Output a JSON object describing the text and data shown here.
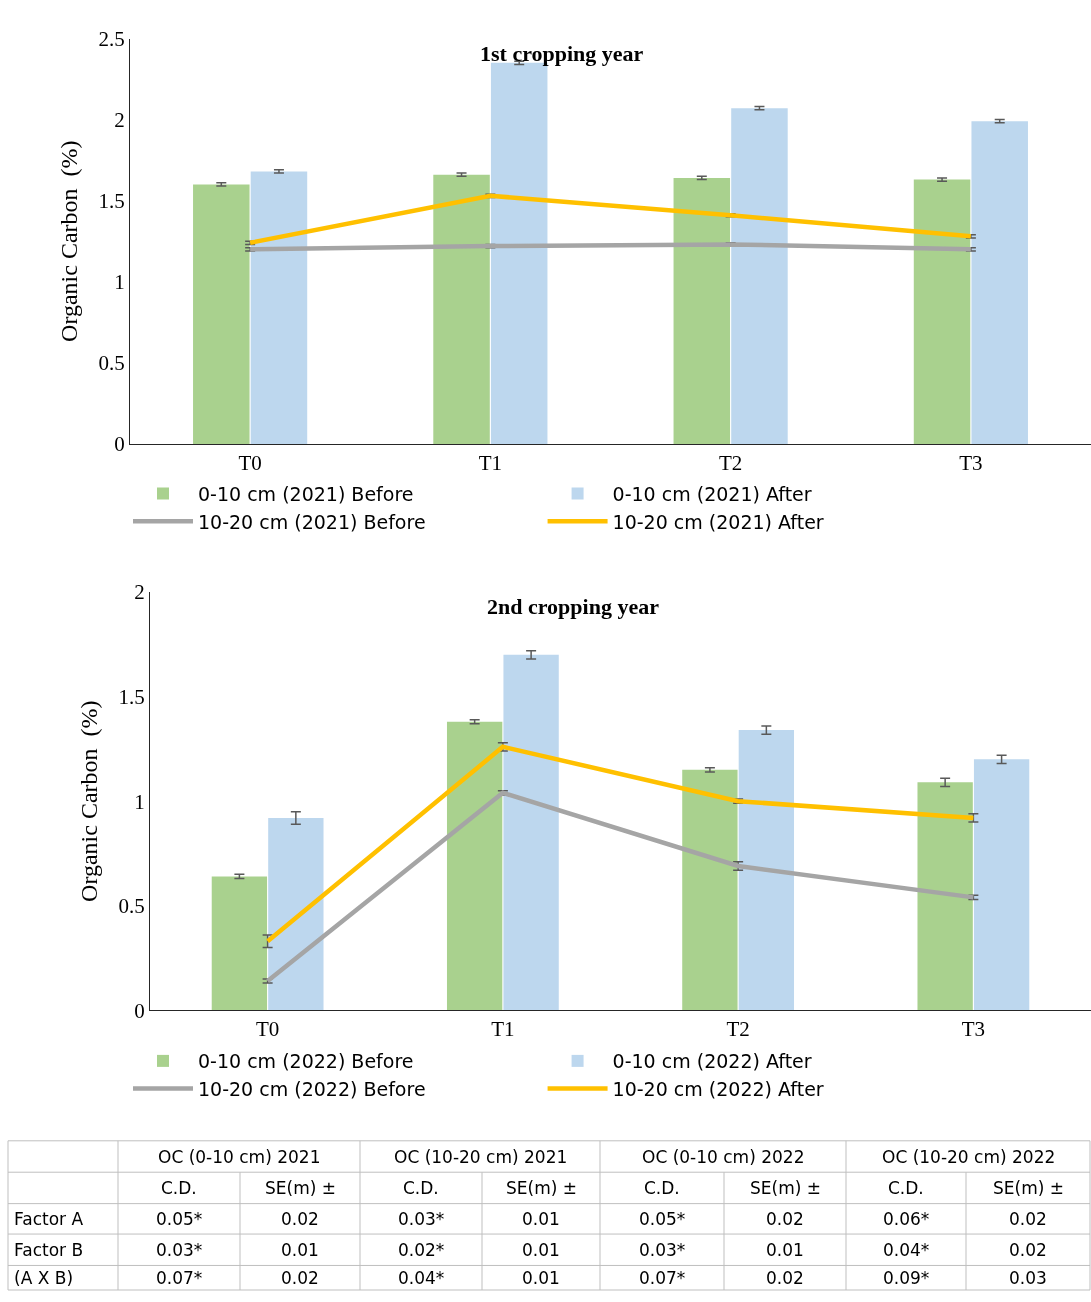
{
  "chart_data": [
    {
      "type": "bar",
      "title": "1st cropping year",
      "ylabel": "Organic Carbon  (%)",
      "categories": [
        "T0",
        "T1",
        "T2",
        "T3"
      ],
      "ylim": [
        0,
        2.5
      ],
      "yticks": [
        0,
        0.5,
        1,
        1.5,
        2,
        2.5
      ],
      "legend": "bottom",
      "series": [
        {
          "name": "0-10 cm (2021) Before",
          "color": "#a9d18e",
          "values": [
            1.6,
            1.66,
            1.64,
            1.63
          ],
          "errors": [
            0.01,
            0.01,
            0.01,
            0.01
          ]
        },
        {
          "name": "0-10 cm (2021) After",
          "color": "#bdd7ee",
          "values": [
            1.68,
            2.35,
            2.07,
            1.99
          ],
          "errors": [
            0.01,
            0.01,
            0.01,
            0.01
          ]
        },
        {
          "name": "10-20 cm (2021) Before",
          "type": "line",
          "marker": "none",
          "color": "#a5a5a5",
          "values": [
            1.2,
            1.22,
            1.23,
            1.2
          ],
          "errors": [
            0.01,
            0.01,
            0.01,
            0.01
          ]
        },
        {
          "name": "10-20 cm (2021) After",
          "type": "line",
          "marker": "none",
          "color": "#ffc000",
          "values": [
            1.24,
            1.53,
            1.41,
            1.28
          ],
          "errors": [
            0.01,
            0.01,
            0.01,
            0.01
          ]
        }
      ]
    },
    {
      "type": "bar",
      "title": "2nd cropping year",
      "ylabel": "Organic Carbon  (%)",
      "categories": [
        "T0",
        "T1",
        "T2",
        "T3"
      ],
      "ylim": [
        0,
        2
      ],
      "yticks": [
        0,
        0.5,
        1,
        1.5,
        2
      ],
      "legend": "bottom",
      "series": [
        {
          "name": "0-10 cm (2022) Before",
          "color": "#a9d18e",
          "values": [
            0.64,
            1.38,
            1.15,
            1.09
          ],
          "errors": [
            0.01,
            0.01,
            0.01,
            0.02
          ]
        },
        {
          "name": "0-10 cm (2022) After",
          "color": "#bdd7ee",
          "values": [
            0.92,
            1.7,
            1.34,
            1.2
          ],
          "errors": [
            0.03,
            0.02,
            0.02,
            0.02
          ]
        },
        {
          "name": "10-20 cm (2022) Before",
          "type": "line",
          "marker": "none",
          "color": "#a5a5a5",
          "values": [
            0.14,
            1.04,
            0.69,
            0.54
          ],
          "errors": [
            0.01,
            0.01,
            0.02,
            0.01
          ]
        },
        {
          "name": "10-20 cm (2022) After",
          "type": "line",
          "color": "#ffc000",
          "values": [
            0.33,
            1.26,
            1.0,
            0.92
          ],
          "errors": [
            0.03,
            0.02,
            0.01,
            0.02
          ]
        }
      ]
    },
    {
      "type": "other",
      "annotations": [
        "OC (0-10 cm) 2021",
        "OC (10-20 cm) 2021",
        "OC (0-10 cm) 2022",
        "OC (10-20 cm) 2022",
        "C.D.",
        "SE(m) ±",
        "C.D.",
        "SE(m) ±",
        "C.D.",
        "SE(m) ±",
        "C.D.",
        "SE(m) ±",
        "Factor A",
        "0.05*",
        "0.02",
        "0.03*",
        "0.01",
        "0.05*",
        "0.02",
        "0.06*",
        "0.02",
        "Factor B",
        "0.03*",
        "0.01",
        "0.02*",
        "0.01",
        "0.03*",
        "0.01",
        "0.04*",
        "0.02",
        "(A X B)",
        "0.07*",
        "0.02",
        "0.04*",
        "0.01",
        "0.07*",
        "0.02",
        "0.09*",
        "0.03"
      ]
    }
  ]
}
